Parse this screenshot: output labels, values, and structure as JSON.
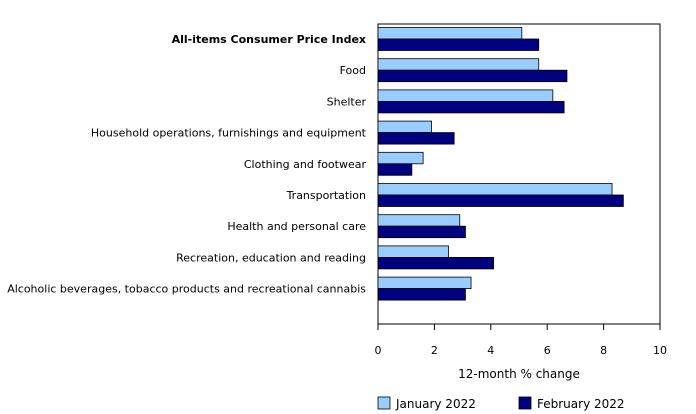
{
  "chart_data": {
    "type": "bar",
    "orientation": "horizontal",
    "categories": [
      "All-items Consumer Price Index",
      "Food",
      "Shelter",
      "Household operations, furnishings and equipment",
      "Clothing and footwear",
      "Transportation",
      "Health and personal care",
      "Recreation, education and reading",
      "Alcoholic beverages, tobacco products and recreational cannabis"
    ],
    "bold_category": "All-items Consumer Price Index",
    "series": [
      {
        "name": "January 2022",
        "color": "#99ccff",
        "values": [
          5.1,
          5.7,
          6.2,
          1.9,
          1.6,
          8.3,
          2.9,
          2.5,
          3.3
        ]
      },
      {
        "name": "February 2022",
        "color": "#000080",
        "values": [
          5.7,
          6.7,
          6.6,
          2.7,
          1.2,
          8.7,
          3.1,
          4.1,
          3.1
        ]
      }
    ],
    "xlabel": "12-month % change",
    "xlim": [
      0,
      10
    ],
    "xticks": [
      "0",
      "2",
      "4",
      "6",
      "8",
      "10"
    ],
    "grid": false,
    "legend_position": "bottom"
  }
}
